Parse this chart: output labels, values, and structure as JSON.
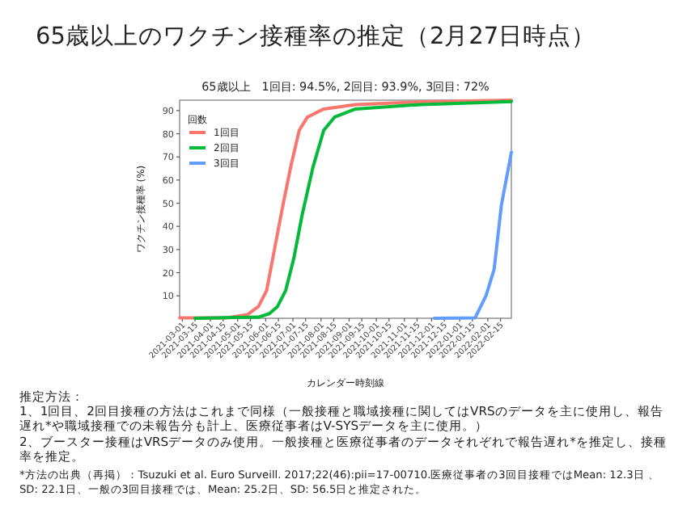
{
  "chart_data": {
    "type": "line",
    "title": "65歳以上のワクチン接種率の推定（2月27日時点）",
    "subtitle": "65歳以上　1回目: 94.5%, 2回目: 93.9%, 3回目: 72%",
    "xlabel": "カレンダー時刻線",
    "ylabel": "ワクチン接種率 (%)",
    "legend_title": "回数",
    "legend": "top left",
    "grid": false,
    "xlim": [
      "2021-02-26",
      "2022-02-27"
    ],
    "ylim": [
      0.3,
      94.5
    ],
    "yticks": [
      10,
      20,
      30,
      40,
      50,
      60,
      70,
      80,
      90
    ],
    "xticks": [
      "2021-03-01",
      "2021-03-15",
      "2021-04-01",
      "2021-04-15",
      "2021-05-01",
      "2021-05-15",
      "2021-06-01",
      "2021-06-15",
      "2021-07-01",
      "2021-07-15",
      "2021-08-01",
      "2021-08-15",
      "2021-09-01",
      "2021-09-15",
      "2021-10-01",
      "2021-10-15",
      "2021-11-01",
      "2021-11-15",
      "2021-12-01",
      "2021-12-15",
      "2022-01-01",
      "2022-01-15",
      "2022-02-01",
      "2022-02-15"
    ],
    "series": [
      {
        "name": "1回目",
        "color": "#f8766d",
        "x": [
          "2021-02-26",
          "2021-04-18",
          "2021-05-12",
          "2021-05-24",
          "2021-06-02",
          "2021-06-11",
          "2021-06-20",
          "2021-06-29",
          "2021-07-08",
          "2021-07-17",
          "2021-08-04",
          "2021-09-08",
          "2021-11-19",
          "2022-02-27"
        ],
        "values": [
          0.5,
          0.5,
          1.9,
          5.4,
          12.3,
          30.8,
          49.2,
          66.5,
          81.5,
          87.2,
          90.7,
          92.6,
          93.8,
          94.5
        ]
      },
      {
        "name": "2回目",
        "color": "#00ba38",
        "x": [
          "2021-03-15",
          "2021-05-24",
          "2021-06-05",
          "2021-06-14",
          "2021-06-23",
          "2021-07-02",
          "2021-07-11",
          "2021-07-23",
          "2021-08-04",
          "2021-08-16",
          "2021-09-08",
          "2021-11-19",
          "2022-02-27"
        ],
        "values": [
          0.3,
          0.8,
          2.3,
          5.4,
          12.3,
          26.2,
          44.6,
          65.4,
          81.5,
          87.2,
          90.7,
          92.6,
          93.9
        ]
      },
      {
        "name": "3回目",
        "color": "#619cff",
        "x": [
          "2021-12-04",
          "2022-01-18",
          "2022-01-30",
          "2022-02-08",
          "2022-02-16",
          "2022-02-27"
        ],
        "values": [
          0.3,
          0.5,
          10,
          21.5,
          49.2,
          72
        ]
      }
    ],
    "annotations": [
      "推定方法：",
      "1、1回目、2回目接種の方法はこれまで同様（一般接種と職域接種に関してはVRSのデータを主に使用し、報告遅れ*や職域接種での未報告分も計上、医療従事者はV-SYSデータを主に使用。）",
      "2、ブースター接種はVRSデータのみ使用。一般接種と医療従事者のデータそれぞれで報告遅れ*を推定し、接種率を推定。",
      "*方法の出典（再掲）：Tsuzuki et al. Euro Surveill. 2017;22(46):pii=17-00710.医療従事者の3回目接種ではMean: 12.3日 、SD: 22.1日、一般の3回目接種では、Mean: 25.2日、SD: 56.5日と推定された。"
    ]
  }
}
